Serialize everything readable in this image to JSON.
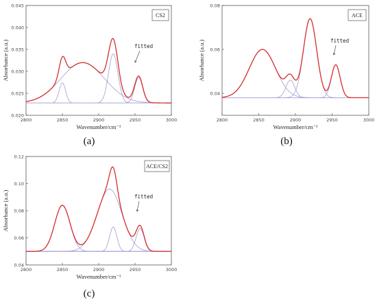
{
  "chart_data": [
    {
      "type": "line",
      "panel": "(a)",
      "legend": "CS2",
      "annotation": "fitted",
      "xlabel": "Wavenumber/cm⁻¹",
      "ylabel": "Absorbance (a.u.)",
      "xlim": [
        2800,
        3000
      ],
      "ylim": [
        0.02,
        0.045
      ],
      "xticks": [
        "2800",
        "2850",
        "2900",
        "2950",
        "3000"
      ],
      "yticks": [
        "0.020",
        "0.025",
        "0.030",
        "0.035",
        "0.040",
        "0.045"
      ],
      "baseline": 0.0228,
      "peaks": [
        {
          "center": 2850,
          "height": 0.0046,
          "width": 4.5
        },
        {
          "center": 2878,
          "height": 0.0092,
          "width": 30
        },
        {
          "center": 2920,
          "height": 0.0112,
          "width": 6.5
        },
        {
          "center": 2955,
          "height": 0.0058,
          "width": 5.5
        }
      ],
      "grid": false,
      "legend_position": "top-right"
    },
    {
      "type": "line",
      "panel": "(b)",
      "legend": "ACE",
      "annotation": "fitted",
      "xlabel": "Wavenumber/cm⁻¹",
      "ylabel": "Absorbance (a.u.)",
      "xlim": [
        2800,
        3000
      ],
      "ylim": [
        0.03,
        0.08
      ],
      "xticks": [
        "2800",
        "2850",
        "2900",
        "2950",
        "3000"
      ],
      "yticks": [
        "0.04",
        "0.06",
        "0.08"
      ],
      "baseline": 0.038,
      "peaks": [
        {
          "center": 2855,
          "height": 0.022,
          "width": 18
        },
        {
          "center": 2893,
          "height": 0.008,
          "width": 6
        },
        {
          "center": 2920,
          "height": 0.036,
          "width": 9
        },
        {
          "center": 2955,
          "height": 0.015,
          "width": 6
        }
      ],
      "grid": false,
      "legend_position": "top-right"
    },
    {
      "type": "line",
      "panel": "(c)",
      "legend": "ACE/CS2",
      "annotation": "fitted",
      "xlabel": "Wavenumber/cm⁻¹",
      "ylabel": "Absorbance (a.u.)",
      "xlim": [
        2800,
        3000
      ],
      "ylim": [
        0.04,
        0.12
      ],
      "xticks": [
        "2800",
        "2850",
        "2900",
        "2950",
        "3000"
      ],
      "yticks": [
        "0.04",
        "0.06",
        "0.08",
        "0.10",
        "0.12"
      ],
      "baseline": 0.05,
      "peaks": [
        {
          "center": 2850,
          "height": 0.034,
          "width": 10.5
        },
        {
          "center": 2915,
          "height": 0.046,
          "width": 17
        },
        {
          "center": 2920,
          "height": 0.018,
          "width": 5
        },
        {
          "center": 2957,
          "height": 0.017,
          "width": 5.5
        }
      ],
      "grid": false,
      "legend_position": "top-right"
    }
  ],
  "colors": {
    "fitted_curve": "#d62d2d",
    "component_curve": "#a9a6d6",
    "baseline": "#b8b6dc",
    "axis": "#555555"
  }
}
